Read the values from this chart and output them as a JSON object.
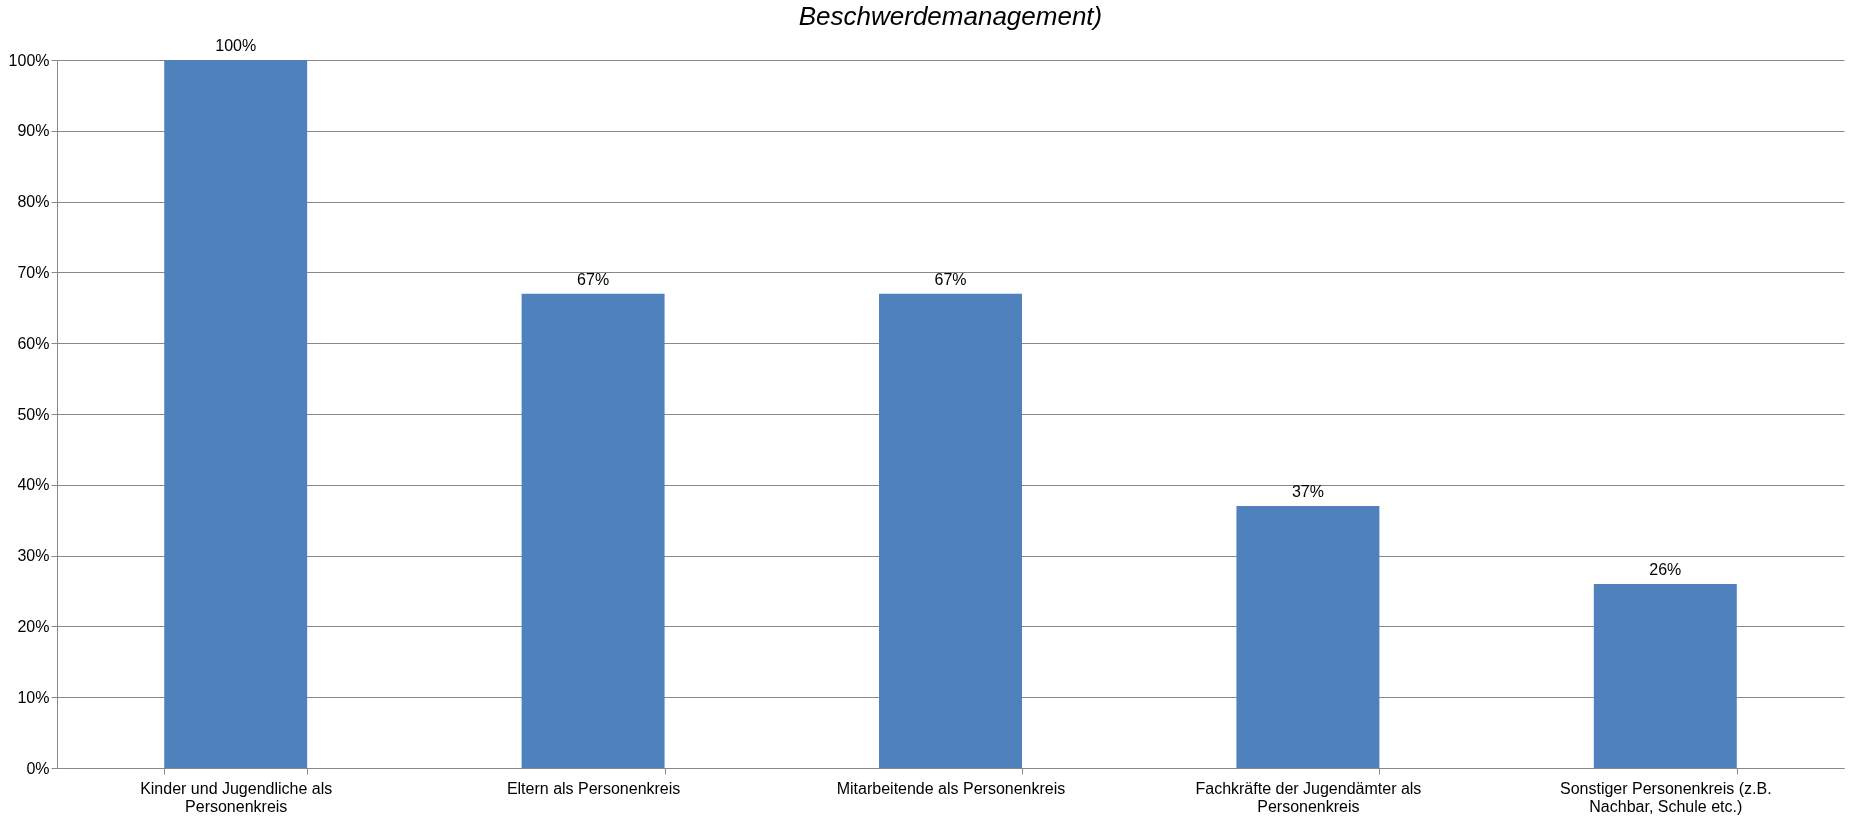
{
  "chart_data": {
    "type": "bar",
    "title": "Beschwerdemanagement)",
    "categories": [
      "Kinder und Jugendliche als Personenkreis",
      "Eltern als Personenkreis",
      "Mitarbeitende als Personenkreis",
      "Fachkräfte der Jugendämter als Personenkreis",
      "Sonstiger Personenkreis (z.B. Nachbar, Schule etc.)"
    ],
    "values": [
      100,
      67,
      67,
      37,
      26
    ],
    "value_labels": [
      "100%",
      "67%",
      "67%",
      "37%",
      "26%"
    ],
    "color": "#4f81bd",
    "ylim": [
      0,
      100
    ],
    "yticks": [
      {
        "value": 0,
        "label": "0%"
      },
      {
        "value": 10,
        "label": "10%"
      },
      {
        "value": 20,
        "label": "20%"
      },
      {
        "value": 30,
        "label": "30%"
      },
      {
        "value": 40,
        "label": "40%"
      },
      {
        "value": 50,
        "label": "50%"
      },
      {
        "value": 60,
        "label": "60%"
      },
      {
        "value": 70,
        "label": "70%"
      },
      {
        "value": 80,
        "label": "80%"
      },
      {
        "value": 90,
        "label": "90%"
      },
      {
        "value": 100,
        "label": "100%"
      }
    ],
    "grid": "y"
  }
}
